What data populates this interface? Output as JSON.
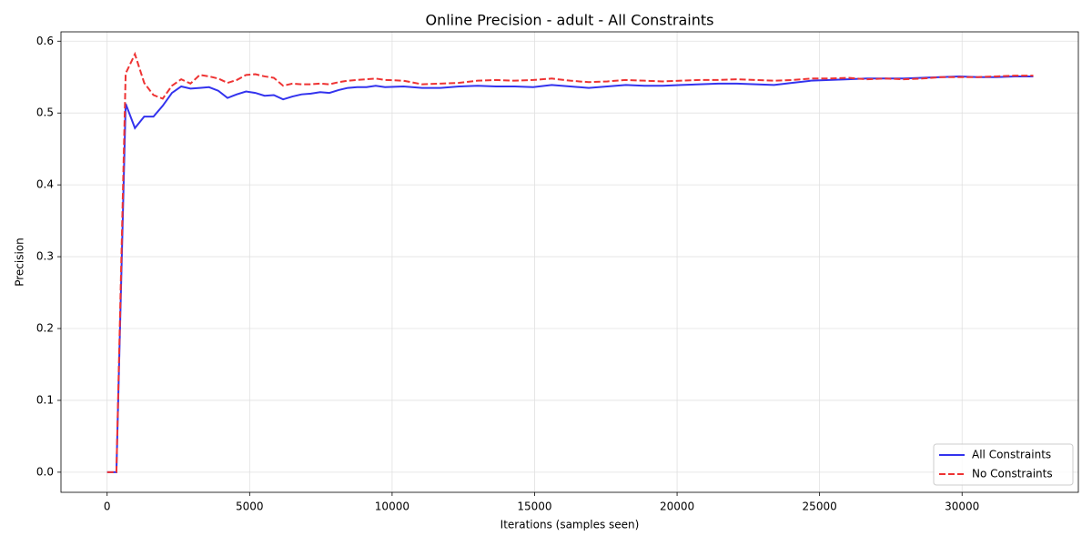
{
  "chart_data": {
    "type": "line",
    "title": "Online Precision - adult - All Constraints",
    "x_label": "Iterations (samples seen)",
    "y_label": "Precision",
    "x": [
      0,
      325,
      650,
      975,
      1300,
      1625,
      1950,
      2275,
      2600,
      2925,
      3250,
      3575,
      3900,
      4225,
      4550,
      4875,
      5200,
      5525,
      5850,
      6175,
      6500,
      6825,
      7150,
      7475,
      7800,
      8125,
      8450,
      8775,
      9100,
      9425,
      9750,
      10400,
      11050,
      11700,
      12350,
      13000,
      13650,
      14300,
      14950,
      15600,
      16250,
      16900,
      17550,
      18200,
      18850,
      19500,
      20150,
      20800,
      21450,
      22100,
      22750,
      23400,
      24050,
      24700,
      25350,
      26000,
      26650,
      27300,
      27950,
      28600,
      29250,
      29900,
      30550,
      31200,
      31850,
      32500
    ],
    "series": [
      {
        "name": "All Constraints",
        "color": "#3333ee",
        "style": "solid",
        "values": [
          0,
          0,
          0.513,
          0.479,
          0.495,
          0.495,
          0.51,
          0.528,
          0.537,
          0.534,
          0.535,
          0.536,
          0.531,
          0.521,
          0.526,
          0.53,
          0.528,
          0.524,
          0.525,
          0.519,
          0.523,
          0.526,
          0.527,
          0.529,
          0.528,
          0.532,
          0.535,
          0.536,
          0.536,
          0.538,
          0.536,
          0.537,
          0.535,
          0.535,
          0.537,
          0.538,
          0.537,
          0.537,
          0.536,
          0.539,
          0.537,
          0.535,
          0.537,
          0.539,
          0.538,
          0.538,
          0.539,
          0.54,
          0.541,
          0.541,
          0.54,
          0.539,
          0.542,
          0.545,
          0.546,
          0.547,
          0.548,
          0.548,
          0.548,
          0.549,
          0.55,
          0.551,
          0.55,
          0.55,
          0.551,
          0.551
        ]
      },
      {
        "name": "No Constraints",
        "color": "#ee3333",
        "style": "dashed",
        "values": [
          0,
          0,
          0.555,
          0.582,
          0.542,
          0.525,
          0.52,
          0.538,
          0.547,
          0.541,
          0.553,
          0.551,
          0.548,
          0.542,
          0.546,
          0.553,
          0.554,
          0.551,
          0.549,
          0.538,
          0.541,
          0.54,
          0.54,
          0.541,
          0.54,
          0.543,
          0.545,
          0.546,
          0.547,
          0.548,
          0.546,
          0.545,
          0.54,
          0.541,
          0.542,
          0.545,
          0.546,
          0.545,
          0.546,
          0.548,
          0.545,
          0.543,
          0.544,
          0.546,
          0.545,
          0.544,
          0.545,
          0.546,
          0.546,
          0.547,
          0.546,
          0.545,
          0.546,
          0.548,
          0.548,
          0.549,
          0.547,
          0.548,
          0.547,
          0.548,
          0.55,
          0.55,
          0.55,
          0.551,
          0.552,
          0.552
        ]
      }
    ],
    "xlim": [
      -1620,
      34080
    ],
    "ylim": [
      -0.028,
      0.613
    ],
    "xticks": [
      0,
      5000,
      10000,
      15000,
      20000,
      25000,
      30000
    ],
    "yticks": [
      {
        "value": 0,
        "label": "0.0"
      },
      0.1,
      0.2,
      0.3,
      0.4,
      0.5,
      0.6
    ],
    "grid": true,
    "legend": "lower right"
  }
}
